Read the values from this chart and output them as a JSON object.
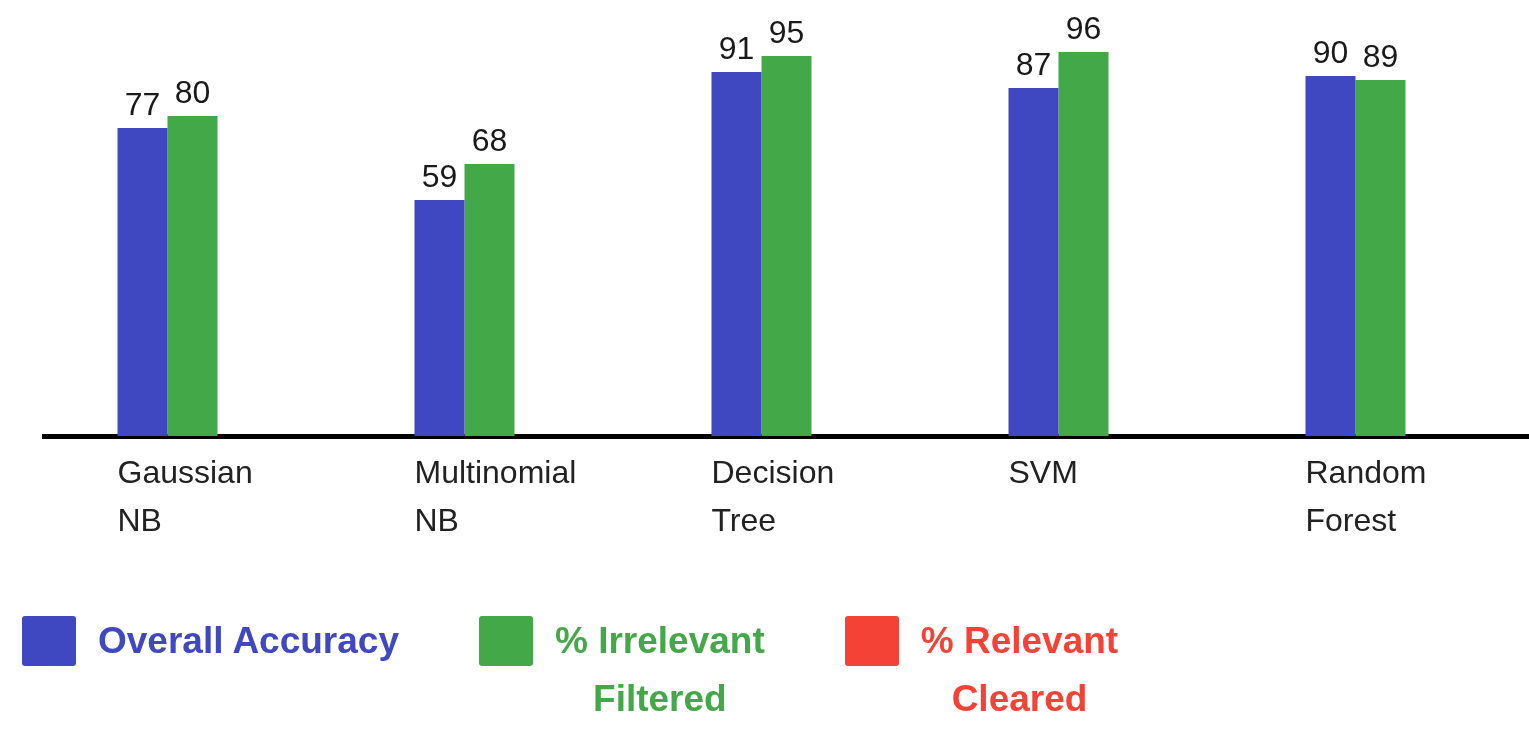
{
  "chart_data": {
    "type": "bar",
    "categories": [
      "Gaussian NB",
      "Multinomial NB",
      "Decision Tree",
      "SVM",
      "Random Forest"
    ],
    "series": [
      {
        "name": "Overall Accuracy",
        "color": "#3f48c0",
        "values": [
          77,
          59,
          91,
          87,
          90
        ]
      },
      {
        "name": "% Irrelevant Filtered",
        "color": "#43a847",
        "values": [
          80,
          68,
          95,
          96,
          89
        ]
      },
      {
        "name": "% Relevant Cleared",
        "color": "#f44336",
        "values": [
          null,
          null,
          null,
          null,
          null
        ]
      }
    ],
    "data_labels": true,
    "legend": "bottom",
    "tick_labels": "x"
  }
}
